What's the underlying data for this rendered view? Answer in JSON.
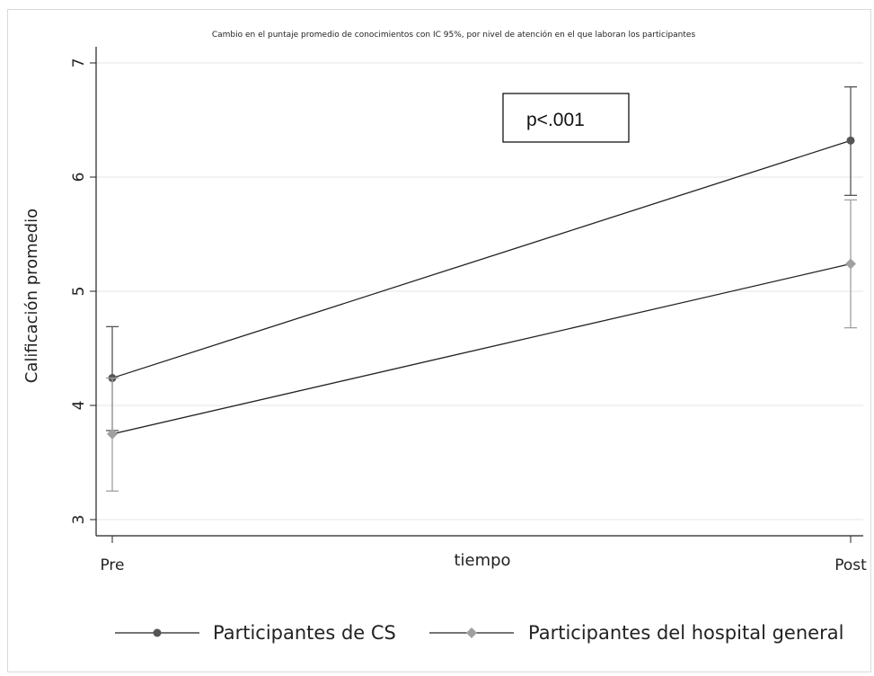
{
  "chart_data": {
    "type": "line",
    "title": "Cambio en el puntaje promedio de conocimientos con IC 95%, por nivel de atención en el que laboran los participantes",
    "xlabel": "tiempo",
    "ylabel": "Calificación promedio",
    "categories": [
      "Pre",
      "Post"
    ],
    "ylim": [
      3,
      7
    ],
    "yticks": [
      "3",
      "4",
      "5",
      "6",
      "7"
    ],
    "grid": true,
    "legend_position": "bottom",
    "annotation": "p<.001",
    "series": [
      {
        "name": "Participantes de CS",
        "values": [
          4.24,
          6.32
        ],
        "ci_low": [
          3.78,
          5.84
        ],
        "ci_high": [
          4.69,
          6.79
        ],
        "color": "#555555",
        "marker": "circle"
      },
      {
        "name": "Participantes del hospital general",
        "values": [
          3.75,
          5.24
        ],
        "ci_low": [
          3.25,
          4.68
        ],
        "ci_high": [
          4.24,
          5.8
        ],
        "color": "#a0a0a0",
        "marker": "diamond"
      }
    ]
  }
}
